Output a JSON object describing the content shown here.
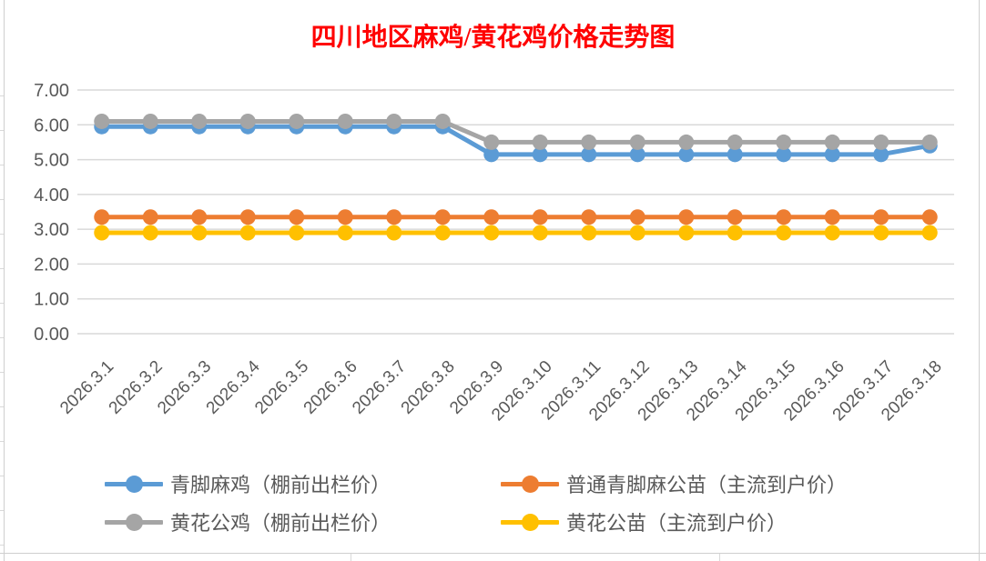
{
  "chart_data": {
    "type": "line",
    "title": "四川地区麻鸡/黄花鸡价格走势图",
    "title_color": "#FF0000",
    "categories": [
      "2026.3.1",
      "2026.3.2",
      "2026.3.3",
      "2026.3.4",
      "2026.3.5",
      "2026.3.6",
      "2026.3.7",
      "2026.3.8",
      "2026.3.9",
      "2026.3.10",
      "2026.3.11",
      "2026.3.12",
      "2026.3.13",
      "2026.3.14",
      "2026.3.15",
      "2026.3.16",
      "2026.3.17",
      "2026.3.18"
    ],
    "series": [
      {
        "name": "青脚麻鸡（棚前出栏价）",
        "color": "#5B9BD5",
        "values": [
          5.95,
          5.95,
          5.95,
          5.95,
          5.95,
          5.95,
          5.95,
          5.95,
          5.15,
          5.15,
          5.15,
          5.15,
          5.15,
          5.15,
          5.15,
          5.15,
          5.15,
          5.4
        ]
      },
      {
        "name": "普通青脚麻公苗（主流到户价）",
        "color": "#ED7D31",
        "values": [
          3.35,
          3.35,
          3.35,
          3.35,
          3.35,
          3.35,
          3.35,
          3.35,
          3.35,
          3.35,
          3.35,
          3.35,
          3.35,
          3.35,
          3.35,
          3.35,
          3.35,
          3.35
        ]
      },
      {
        "name": "黄花公鸡（棚前出栏价）",
        "color": "#A5A5A5",
        "values": [
          6.1,
          6.1,
          6.1,
          6.1,
          6.1,
          6.1,
          6.1,
          6.1,
          5.5,
          5.5,
          5.5,
          5.5,
          5.5,
          5.5,
          5.5,
          5.5,
          5.5,
          5.5
        ]
      },
      {
        "name": "黄花公苗（主流到户价）",
        "color": "#FFC000",
        "values": [
          2.9,
          2.9,
          2.9,
          2.9,
          2.9,
          2.9,
          2.9,
          2.9,
          2.9,
          2.9,
          2.9,
          2.9,
          2.9,
          2.9,
          2.9,
          2.9,
          2.9,
          2.9
        ]
      }
    ],
    "xlabel": "",
    "ylabel": "",
    "ylim": [
      0,
      7
    ],
    "y_tick_labels": [
      "0.00",
      "1.00",
      "2.00",
      "3.00",
      "4.00",
      "5.00",
      "6.00",
      "7.00"
    ],
    "grid": true,
    "gridline_color": "#D9D9D9",
    "axis_text_color": "#595959",
    "legend_position": "bottom"
  }
}
